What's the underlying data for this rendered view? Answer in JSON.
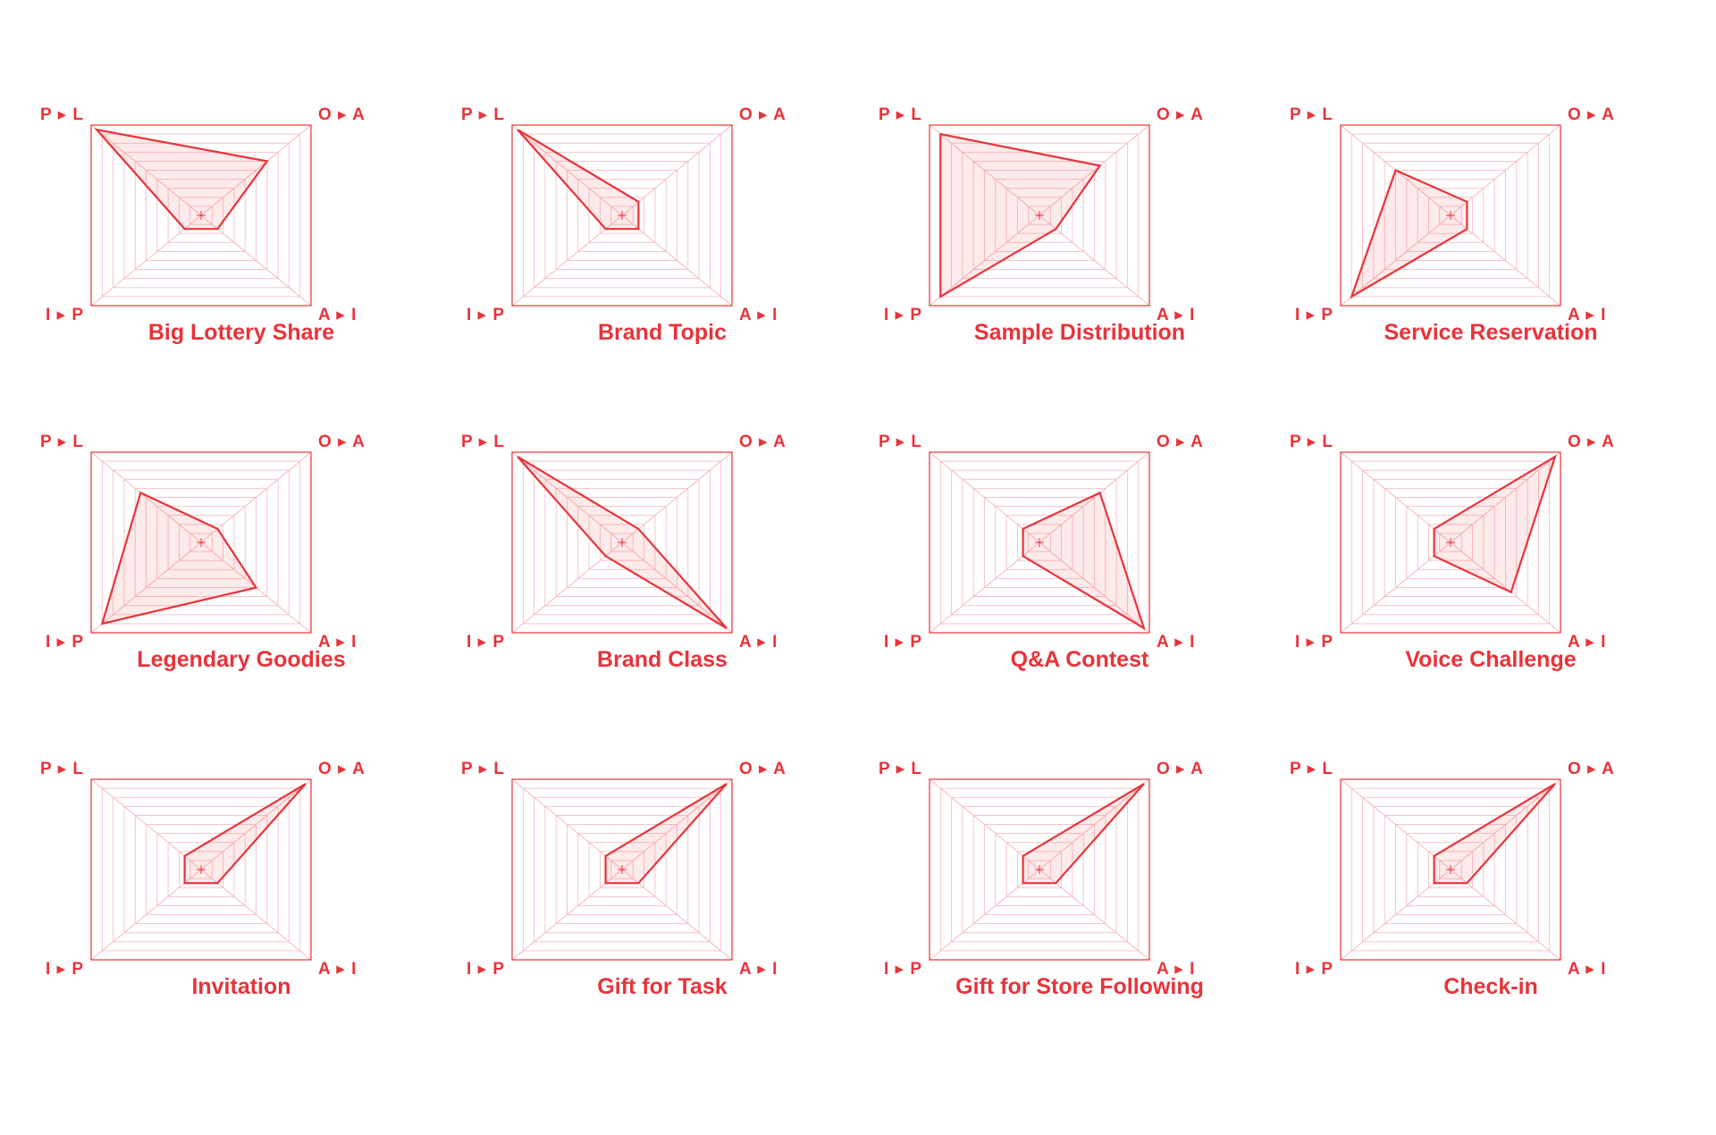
{
  "colors": {
    "accent": "#e8333a",
    "fill": "rgba(232,51,58,0.10)",
    "grid": "#f6b9bc"
  },
  "chart_data": [
    {
      "type": "radar",
      "title": "Big Lottery Share",
      "axes": [
        "P ▸ L",
        "O ▸ A",
        "A ▸ I",
        "I ▸ P"
      ],
      "values": [
        0.95,
        0.6,
        0.15,
        0.15
      ]
    },
    {
      "type": "radar",
      "title": "Brand Topic",
      "axes": [
        "P ▸ L",
        "O ▸ A",
        "A ▸ I",
        "I ▸ P"
      ],
      "values": [
        0.95,
        0.15,
        0.15,
        0.15
      ]
    },
    {
      "type": "radar",
      "title": "Sample Distribution",
      "axes": [
        "P ▸ L",
        "O ▸ A",
        "A ▸ I",
        "I ▸ P"
      ],
      "values": [
        0.9,
        0.55,
        0.15,
        0.9
      ]
    },
    {
      "type": "radar",
      "title": "Service Reservation",
      "axes": [
        "P ▸ L",
        "O ▸ A",
        "A ▸ I",
        "I ▸ P"
      ],
      "values": [
        0.5,
        0.15,
        0.15,
        0.9
      ]
    },
    {
      "type": "radar",
      "title": "Legendary Goodies",
      "axes": [
        "P ▸ L",
        "O ▸ A",
        "A ▸ I",
        "I ▸ P"
      ],
      "values": [
        0.55,
        0.15,
        0.5,
        0.9
      ]
    },
    {
      "type": "radar",
      "title": "Brand Class",
      "axes": [
        "P ▸ L",
        "O ▸ A",
        "A ▸ I",
        "I ▸ P"
      ],
      "values": [
        0.95,
        0.15,
        0.95,
        0.15
      ]
    },
    {
      "type": "radar",
      "title": "Q&A Contest",
      "axes": [
        "P ▸ L",
        "O ▸ A",
        "A ▸ I",
        "I ▸ P"
      ],
      "values": [
        0.15,
        0.55,
        0.95,
        0.15
      ]
    },
    {
      "type": "radar",
      "title": "Voice Challenge",
      "axes": [
        "P ▸ L",
        "O ▸ A",
        "A ▸ I",
        "I ▸ P"
      ],
      "values": [
        0.15,
        0.95,
        0.55,
        0.15
      ]
    },
    {
      "type": "radar",
      "title": "Invitation",
      "axes": [
        "P ▸ L",
        "O ▸ A",
        "A ▸ I",
        "I ▸ P"
      ],
      "values": [
        0.15,
        0.95,
        0.15,
        0.15
      ]
    },
    {
      "type": "radar",
      "title": "Gift for Task",
      "axes": [
        "P ▸ L",
        "O ▸ A",
        "A ▸ I",
        "I ▸ P"
      ],
      "values": [
        0.15,
        0.95,
        0.15,
        0.15
      ]
    },
    {
      "type": "radar",
      "title": "Gift for Store Following",
      "axes": [
        "P ▸ L",
        "O ▸ A",
        "A ▸ I",
        "I ▸ P"
      ],
      "values": [
        0.15,
        0.95,
        0.15,
        0.15
      ]
    },
    {
      "type": "radar",
      "title": "Check-in",
      "axes": [
        "P ▸ L",
        "O ▸ A",
        "A ▸ I",
        "I ▸ P"
      ],
      "values": [
        0.15,
        0.95,
        0.15,
        0.15
      ]
    }
  ]
}
